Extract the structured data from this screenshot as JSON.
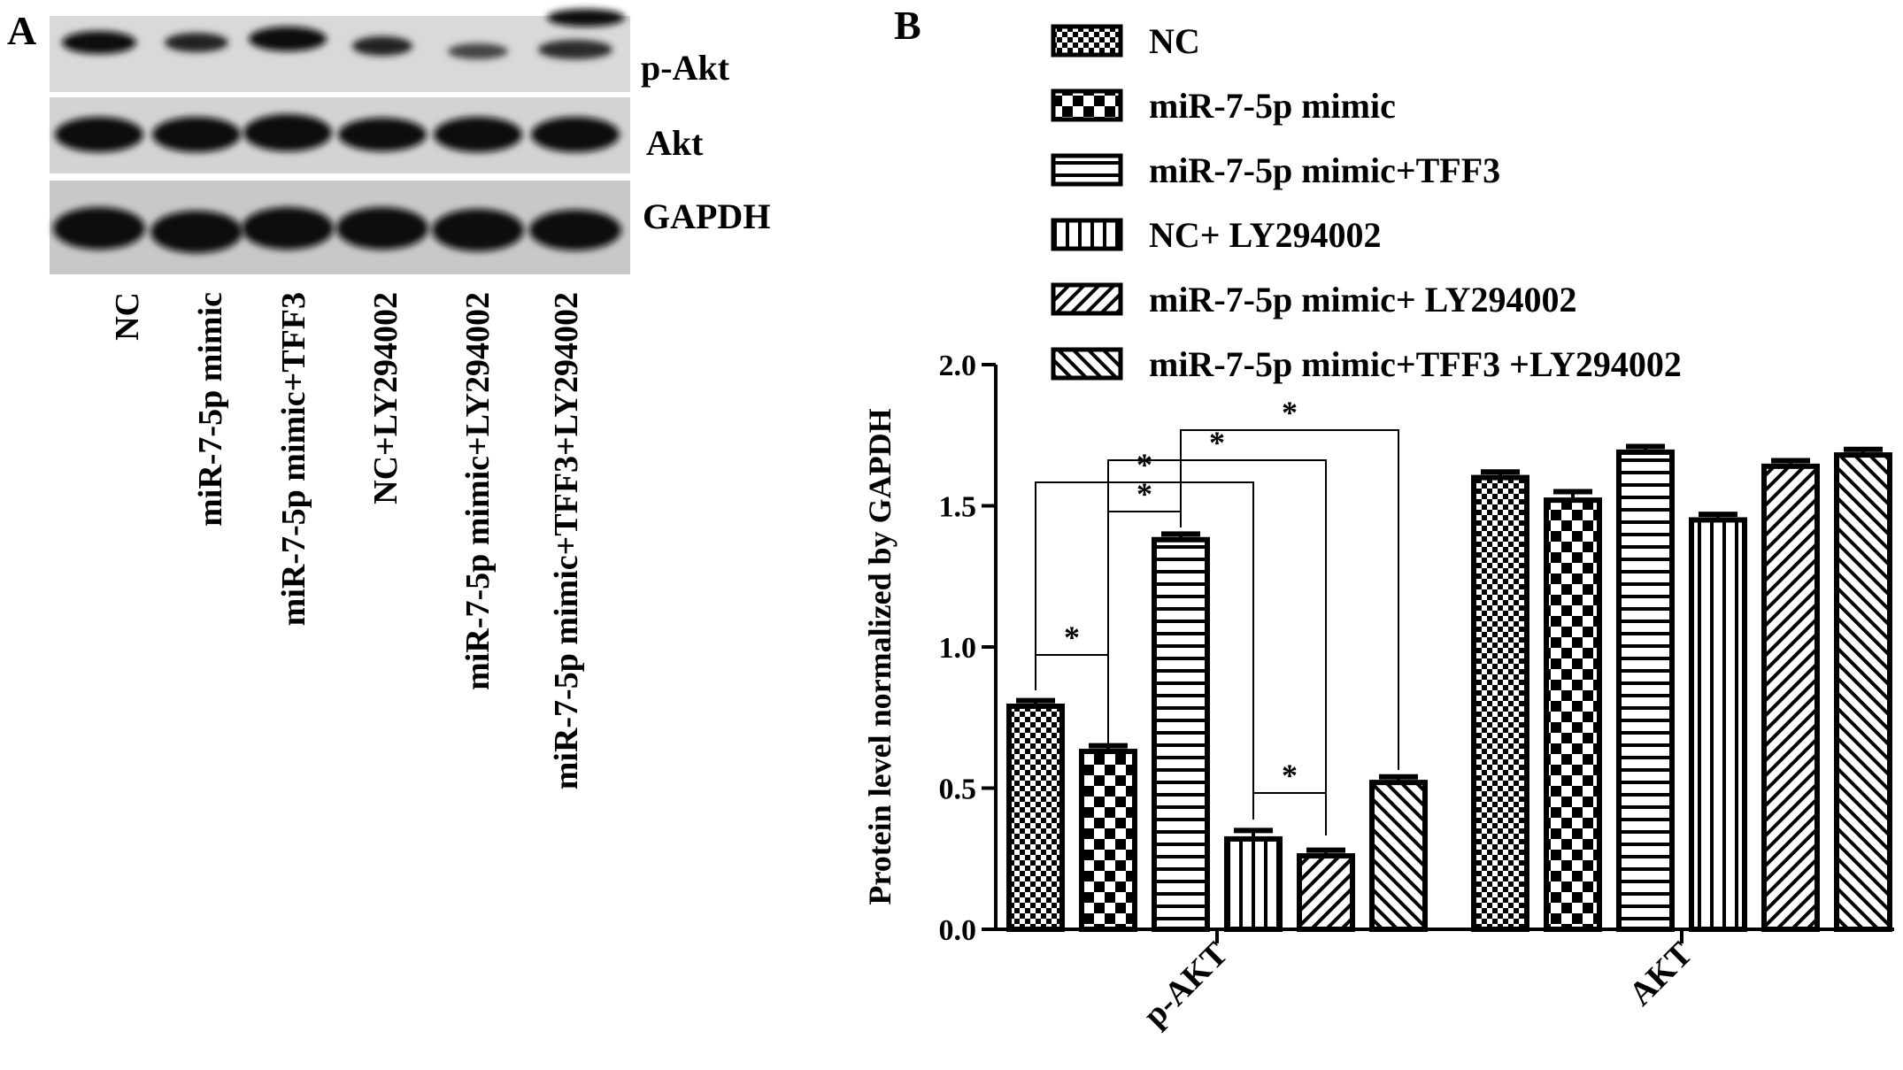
{
  "panel_a": {
    "letter": "A",
    "blot_labels": [
      "p-Akt",
      "Akt",
      "GAPDH"
    ],
    "lanes": [
      "NC",
      "miR-7-5p mimic",
      "miR-7-5p mimic+TFF3",
      "NC+LY294002",
      "miR-7-5p mimic+LY294002",
      "miR-7-5p mimic+TFF3+LY294002"
    ]
  },
  "panel_b": {
    "letter": "B"
  },
  "chart_data": {
    "type": "bar",
    "title": "",
    "xlabel": "",
    "ylabel": "Protein level normalized by GAPDH",
    "ylim": [
      0,
      2.0
    ],
    "yticks": [
      "0.0",
      "0.5",
      "1.0",
      "1.5",
      "2.0"
    ],
    "categories": [
      "p-AKT",
      "AKT"
    ],
    "series": [
      {
        "name": "NC",
        "pattern": "checker-fine",
        "values": [
          0.79,
          1.6
        ],
        "errors": [
          0.02,
          0.02
        ]
      },
      {
        "name": "miR-7-5p mimic",
        "pattern": "checker-coarse",
        "values": [
          0.63,
          1.52
        ],
        "errors": [
          0.02,
          0.03
        ]
      },
      {
        "name": "miR-7-5p mimic+TFF3",
        "pattern": "horizontal",
        "values": [
          1.38,
          1.69
        ],
        "errors": [
          0.02,
          0.02
        ]
      },
      {
        "name": "NC+ LY294002",
        "pattern": "vertical",
        "values": [
          0.32,
          1.45
        ],
        "errors": [
          0.03,
          0.02
        ]
      },
      {
        "name": "miR-7-5p mimic+ LY294002",
        "pattern": "diagonal-up",
        "values": [
          0.26,
          1.64
        ],
        "errors": [
          0.02,
          0.02
        ]
      },
      {
        "name": "miR-7-5p mimic+TFF3 +LY294002",
        "pattern": "diagonal-down",
        "values": [
          0.52,
          1.68
        ],
        "errors": [
          0.02,
          0.02
        ]
      }
    ],
    "legend_position": "top",
    "significance": [
      {
        "from": 0,
        "to": 1,
        "label": "*"
      },
      {
        "from": 1,
        "to": 2,
        "label": "*"
      },
      {
        "from": 0,
        "to": 3,
        "label": "*"
      },
      {
        "from": 3,
        "to": 4,
        "label": "*"
      },
      {
        "from": 1,
        "to": 4,
        "label": "*"
      },
      {
        "from": 2,
        "to": 5,
        "label": "*"
      }
    ]
  }
}
